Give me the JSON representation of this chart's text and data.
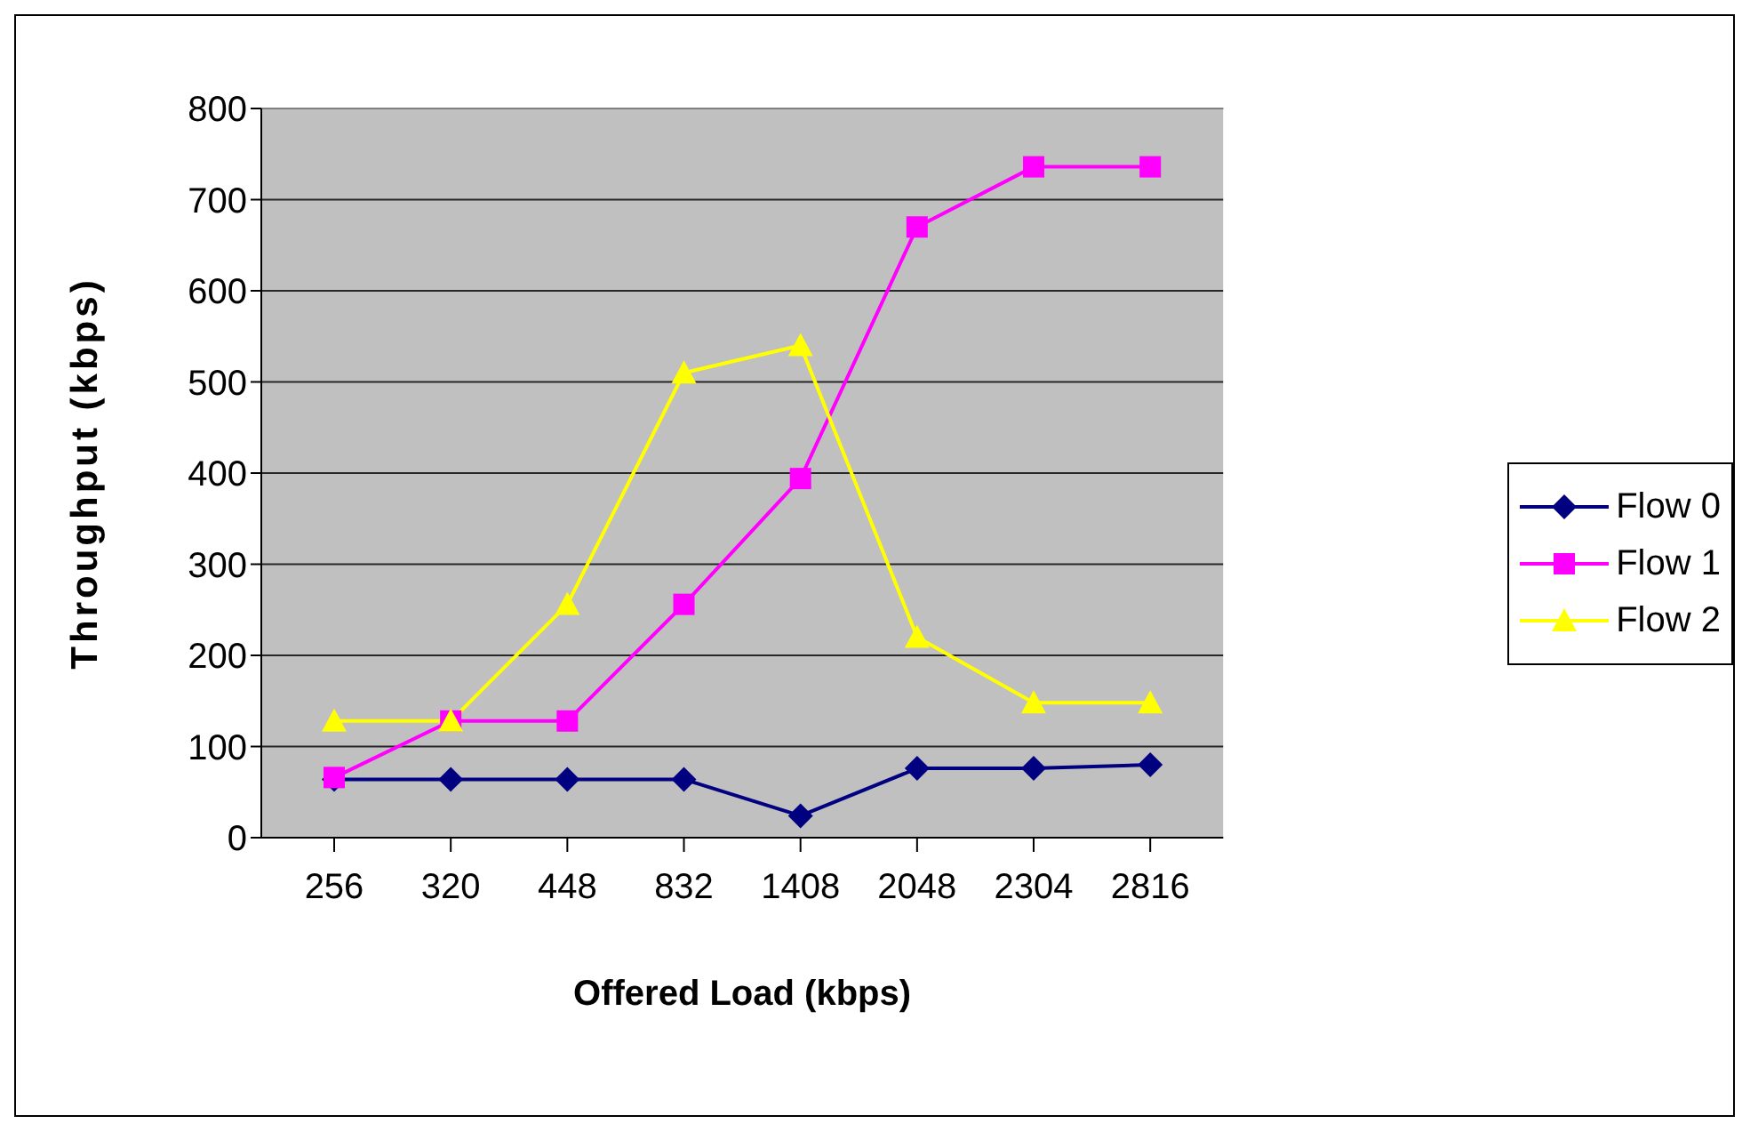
{
  "chart_data": {
    "type": "line",
    "xlabel": "Offered Load (kbps)",
    "ylabel": "Throughput (kbps)",
    "categories": [
      "256",
      "320",
      "448",
      "832",
      "1408",
      "2048",
      "2304",
      "2816"
    ],
    "series": [
      {
        "name": "Flow 0",
        "color": "#000080",
        "marker": "diamond",
        "values": [
          64,
          64,
          64,
          64,
          24,
          76,
          76,
          80
        ]
      },
      {
        "name": "Flow 1",
        "color": "#ff00ff",
        "marker": "square",
        "values": [
          66,
          128,
          128,
          256,
          394,
          670,
          736,
          736
        ]
      },
      {
        "name": "Flow 2",
        "color": "#ffff00",
        "marker": "triangle",
        "values": [
          128,
          128,
          256,
          510,
          540,
          220,
          148,
          148
        ]
      }
    ],
    "ylim": [
      0,
      800
    ],
    "yticks": [
      0,
      100,
      200,
      300,
      400,
      500,
      600,
      700,
      800
    ],
    "grid": "y",
    "legend": "right"
  }
}
